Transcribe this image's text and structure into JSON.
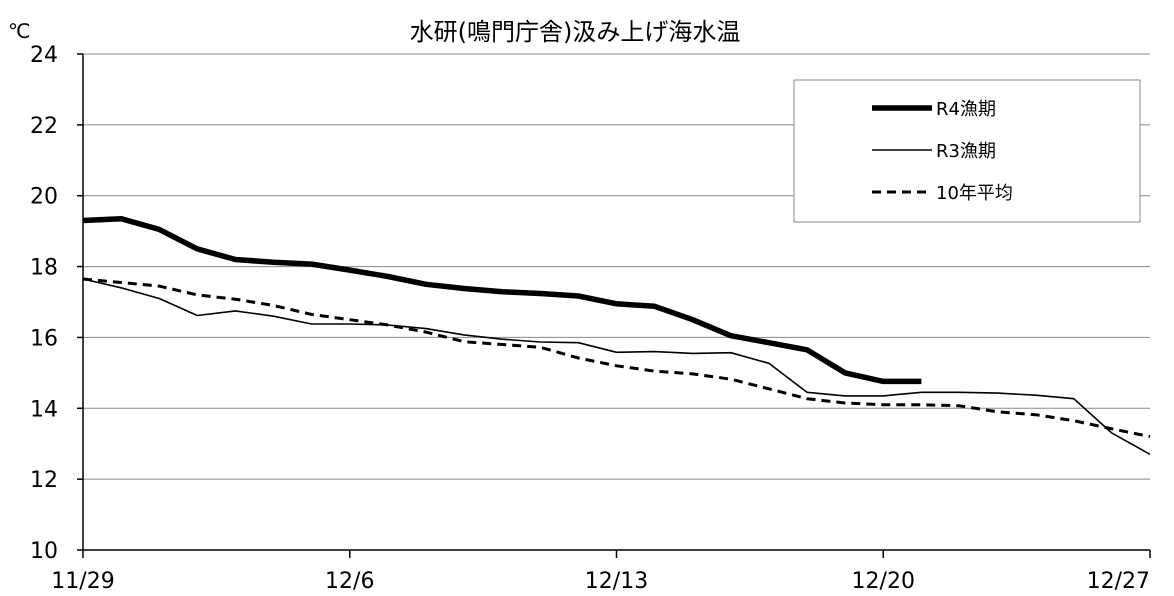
{
  "chart_data": {
    "type": "line",
    "title": "水研(鳴門庁舎)汲み上げ海水温",
    "unit": "℃",
    "xlabel": "",
    "ylabel": "",
    "ylim": [
      10,
      24
    ],
    "y_ticks": [
      10,
      12,
      14,
      16,
      18,
      20,
      22,
      24
    ],
    "x_ticks": [
      "11/29",
      "12/6",
      "12/13",
      "12/20",
      "12/27"
    ],
    "grid": true,
    "legend_position": "top-right",
    "categories": [
      "11/29",
      "11/30",
      "12/1",
      "12/2",
      "12/3",
      "12/4",
      "12/5",
      "12/6",
      "12/7",
      "12/8",
      "12/9",
      "12/10",
      "12/11",
      "12/12",
      "12/13",
      "12/14",
      "12/15",
      "12/16",
      "12/17",
      "12/18",
      "12/19",
      "12/20",
      "12/21",
      "12/22",
      "12/23",
      "12/24",
      "12/25",
      "12/26",
      "12/27"
    ],
    "series": [
      {
        "name": "R4漁期",
        "style": "thick",
        "color": "#000000",
        "values": [
          19.3,
          19.35,
          19.05,
          18.5,
          18.2,
          18.12,
          18.07,
          17.9,
          17.72,
          17.5,
          17.38,
          17.29,
          17.24,
          17.17,
          16.95,
          16.88,
          16.5,
          16.05,
          15.85,
          15.65,
          15.0,
          14.76,
          14.76,
          null,
          null,
          null,
          null,
          null,
          null
        ]
      },
      {
        "name": "R3漁期",
        "style": "thin",
        "color": "#000000",
        "values": [
          17.65,
          17.4,
          17.1,
          16.62,
          16.75,
          16.6,
          16.38,
          16.38,
          16.35,
          16.25,
          16.07,
          15.95,
          15.87,
          15.85,
          15.58,
          15.6,
          15.55,
          15.57,
          15.27,
          14.45,
          14.35,
          14.35,
          14.45,
          14.45,
          14.43,
          14.37,
          14.27,
          13.3,
          12.7
        ]
      },
      {
        "name": "10年平均",
        "style": "dashed",
        "color": "#000000",
        "values": [
          17.65,
          17.55,
          17.45,
          17.2,
          17.08,
          16.9,
          16.65,
          16.5,
          16.35,
          16.15,
          15.88,
          15.8,
          15.72,
          15.42,
          15.2,
          15.05,
          14.97,
          14.82,
          14.55,
          14.27,
          14.15,
          14.1,
          14.1,
          14.07,
          13.9,
          13.82,
          13.65,
          13.42,
          13.2
        ]
      }
    ]
  }
}
